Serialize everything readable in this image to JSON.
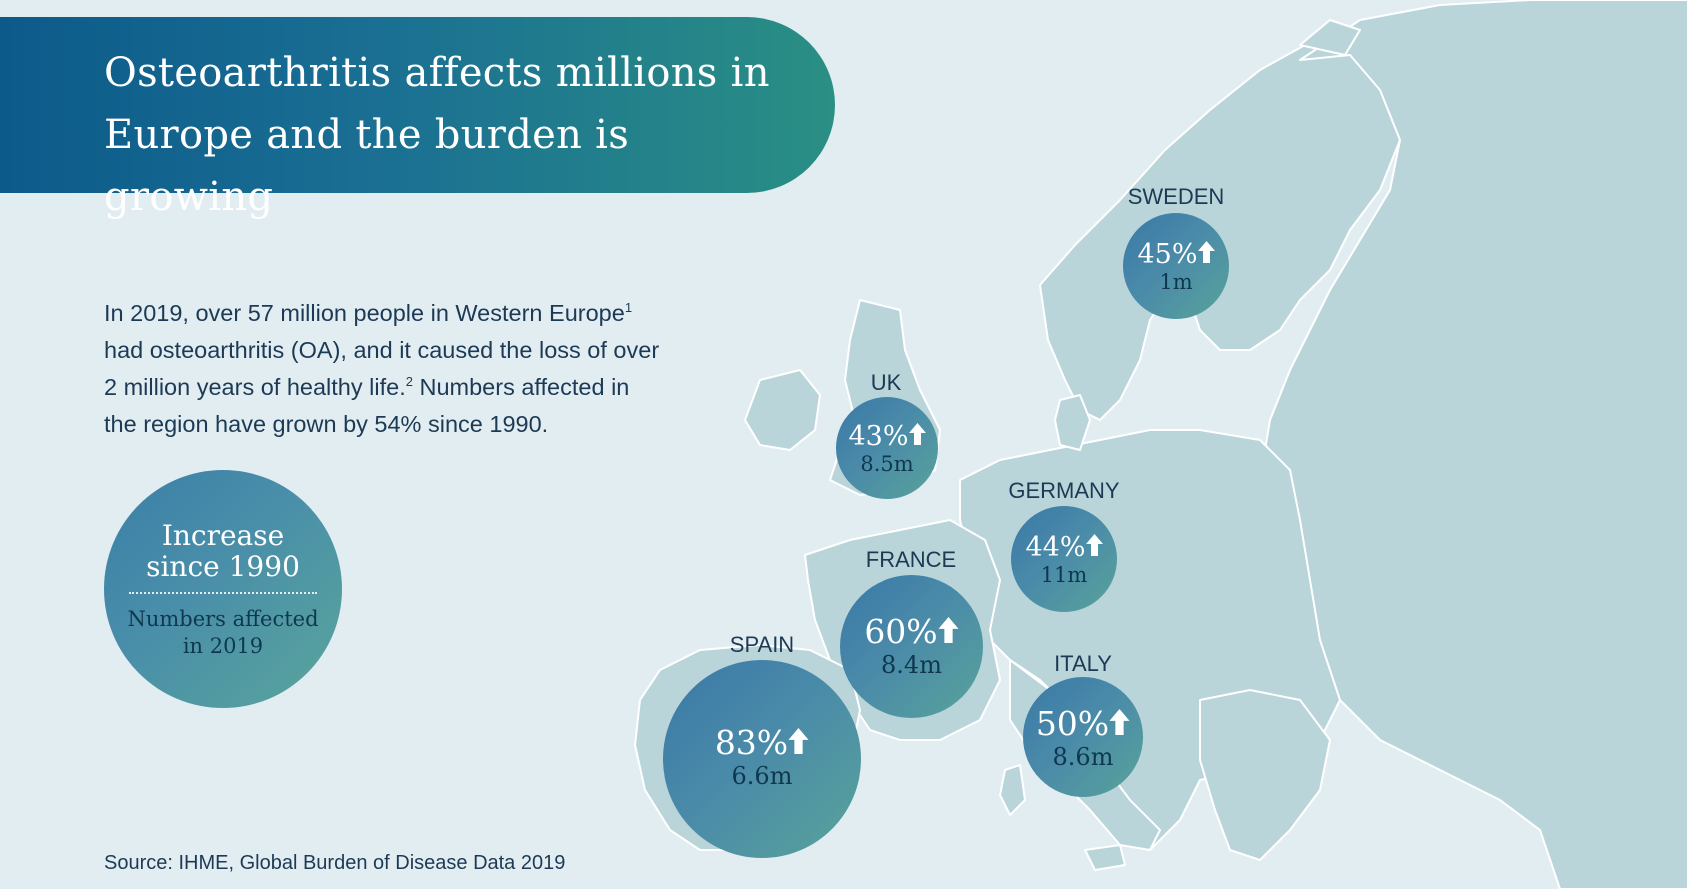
{
  "header": {
    "title_line1": "Osteoarthritis affects millions in",
    "title_line2": "Europe and the burden is growing"
  },
  "intro": {
    "line1_text": "In 2019, over 57 million people in Western Europe",
    "line1_sup": "1",
    "line2": "had osteoarthritis (OA), and it caused the loss of over",
    "line3_text": "2 million years of healthy life.",
    "line3_sup": "2",
    "line3_rest": " Numbers affected in",
    "line4": "the region have grown by 54% since 1990."
  },
  "legend": {
    "top_line1": "Increase",
    "top_line2": "since 1990",
    "bottom_line1": "Numbers affected",
    "bottom_line2": "in 2019"
  },
  "source": "Source: IHME, Global Burden of Disease Data 2019",
  "countries": {
    "sweden": {
      "name": "SWEDEN",
      "increase": "45%",
      "affected": "1m"
    },
    "uk": {
      "name": "UK",
      "increase": "43%",
      "affected": "8.5m"
    },
    "germany": {
      "name": "GERMANY",
      "increase": "44%",
      "affected": "11m"
    },
    "france": {
      "name": "FRANCE",
      "increase": "60%",
      "affected": "8.4m"
    },
    "spain": {
      "name": "SPAIN",
      "increase": "83%",
      "affected": "6.6m"
    },
    "italy": {
      "name": "ITALY",
      "increase": "50%",
      "affected": "8.6m"
    }
  },
  "icons": {
    "increase_arrow": "arrow-up-icon"
  },
  "colors": {
    "background": "#e2edf2",
    "land": "#b9d5da",
    "banner_start": "#0c5a8a",
    "banner_end": "#2a8f84",
    "bubble_start": "#3a78a6",
    "bubble_end": "#58a39a",
    "text_dark": "#1d3a55"
  }
}
